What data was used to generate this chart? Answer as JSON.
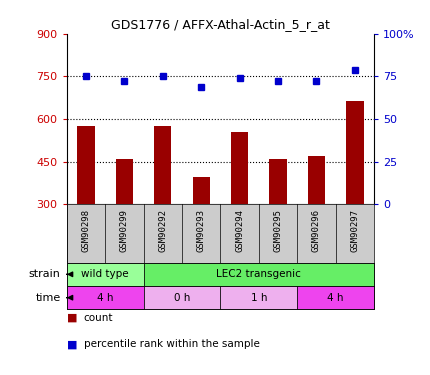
{
  "title": "GDS1776 / AFFX-Athal-Actin_5_r_at",
  "samples": [
    "GSM90298",
    "GSM90299",
    "GSM90292",
    "GSM90293",
    "GSM90294",
    "GSM90295",
    "GSM90296",
    "GSM90297"
  ],
  "counts": [
    575,
    460,
    575,
    395,
    555,
    460,
    470,
    665
  ],
  "percentiles": [
    75,
    72,
    75,
    69,
    74,
    72,
    72,
    79
  ],
  "ylim_left": [
    300,
    900
  ],
  "ylim_right": [
    0,
    100
  ],
  "yticks_left": [
    300,
    450,
    600,
    750,
    900
  ],
  "yticks_right": [
    0,
    25,
    50,
    75,
    100
  ],
  "yticklabels_right": [
    "0",
    "25",
    "50",
    "75",
    "100%"
  ],
  "bar_color": "#990000",
  "dot_color": "#0000cc",
  "hline_values": [
    450,
    600,
    750
  ],
  "strain_labels": [
    {
      "label": "wild type",
      "start": 0,
      "end": 2,
      "color": "#99ff99"
    },
    {
      "label": "LEC2 transgenic",
      "start": 2,
      "end": 8,
      "color": "#66ee66"
    }
  ],
  "time_labels": [
    {
      "label": "4 h",
      "start": 0,
      "end": 2,
      "color": "#ee44ee"
    },
    {
      "label": "0 h",
      "start": 2,
      "end": 4,
      "color": "#eeb0ee"
    },
    {
      "label": "1 h",
      "start": 4,
      "end": 6,
      "color": "#eeb0ee"
    },
    {
      "label": "4 h",
      "start": 6,
      "end": 8,
      "color": "#ee44ee"
    }
  ],
  "left_axis_color": "#cc0000",
  "right_axis_color": "#0000cc",
  "tick_label_area_bg": "#cccccc",
  "fig_bg": "white"
}
